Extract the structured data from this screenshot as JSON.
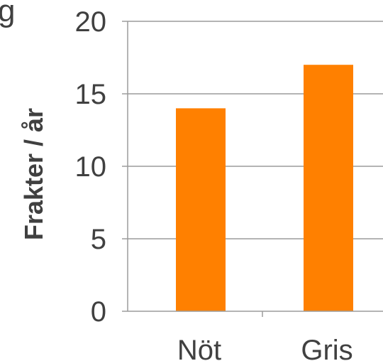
{
  "chart_data": {
    "type": "bar",
    "categories": [
      "Nöt",
      "Gris"
    ],
    "values": [
      14,
      17
    ],
    "title": "",
    "xlabel": "",
    "ylabel": "Frakter / år",
    "ylim": [
      0,
      20
    ],
    "yticks": [
      "0",
      "5",
      "10",
      "15",
      "20"
    ],
    "grid": true,
    "legend": "none",
    "bar_color": "#FF8000",
    "grid_color": "#9C9C9C",
    "text_color": "#404040"
  },
  "clipped_text": "g"
}
